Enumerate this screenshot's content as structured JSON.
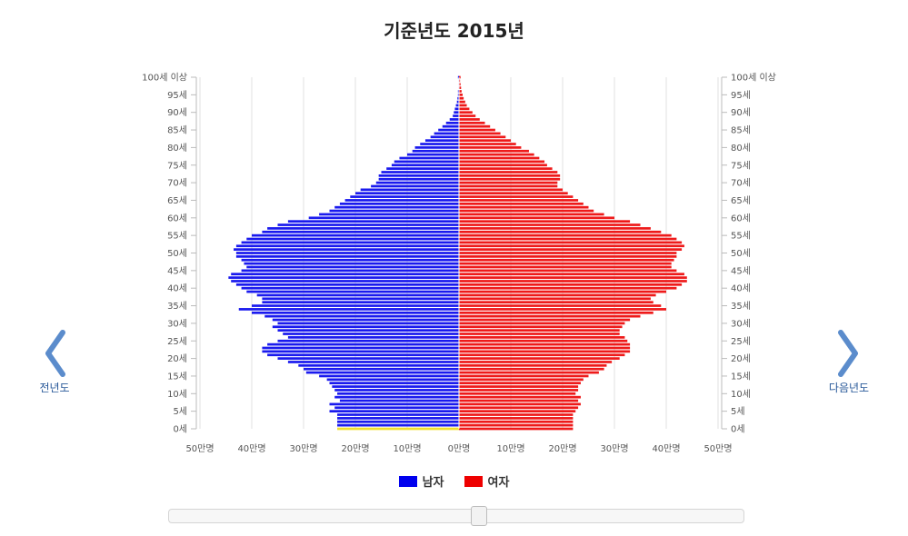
{
  "title": "기준년도 2015년",
  "nav": {
    "prev_label": "전년도",
    "next_label": "다음년도"
  },
  "legend": [
    {
      "label": "남자",
      "color": "#0000ee"
    },
    {
      "label": "여자",
      "color": "#ee0000"
    }
  ],
  "colors": {
    "male": "#1a1aee",
    "female": "#ee1a1a",
    "highlight": "#f0e030",
    "grid": "#e0e0e0"
  },
  "slider": {
    "value_fraction": 0.54
  },
  "chart_data": {
    "type": "bar",
    "orientation": "horizontal-population-pyramid",
    "title": "기준년도 2015년",
    "age_tick_labels": [
      "0세",
      "5세",
      "10세",
      "15세",
      "20세",
      "25세",
      "30세",
      "35세",
      "40세",
      "45세",
      "50세",
      "55세",
      "60세",
      "65세",
      "70세",
      "75세",
      "80세",
      "85세",
      "90세",
      "95세",
      "100세 이상"
    ],
    "x_tick_labels": [
      "50만명",
      "40만명",
      "30만명",
      "20만명",
      "10만명",
      "0만명",
      "10만명",
      "20만명",
      "30만명",
      "40만명",
      "50만명"
    ],
    "xlim": [
      -50,
      50
    ],
    "unit": "만명",
    "highlighted_age": 0,
    "series": [
      {
        "name": "남자",
        "values": [
          23.5,
          23.5,
          23.5,
          23.5,
          23.5,
          25,
          24,
          25,
          23,
          24,
          23.5,
          24,
          24.5,
          25,
          25.5,
          27,
          29.5,
          30,
          31,
          33,
          35,
          37,
          38,
          38,
          37,
          35,
          33,
          34,
          35,
          36,
          35,
          36,
          37.5,
          40,
          42.5,
          40,
          38,
          38,
          39,
          41,
          42,
          43,
          44,
          44.5,
          44,
          42,
          41,
          41.5,
          42,
          43,
          43,
          43.5,
          43,
          42,
          41,
          40,
          38,
          37,
          35,
          33,
          29,
          27,
          25,
          24,
          23,
          22,
          21,
          20,
          19,
          17,
          16,
          15.5,
          15.5,
          15,
          14,
          13,
          12.5,
          11.5,
          10,
          9,
          8.5,
          7.5,
          6.5,
          5.5,
          4.8,
          4,
          3.2,
          2.5,
          1.8,
          1.2,
          1,
          0.8,
          0.6,
          0.4,
          0.3,
          0.2,
          0.2,
          0.1,
          0.1,
          0.1,
          0.2
        ]
      },
      {
        "name": "여자",
        "values": [
          22,
          22,
          22,
          22,
          22,
          22.5,
          23,
          23.5,
          23,
          23.5,
          22.5,
          23,
          23,
          23.5,
          24,
          25,
          27,
          28,
          28.5,
          29.5,
          31,
          32,
          33,
          33,
          33,
          32.5,
          32,
          31,
          31,
          31.5,
          32,
          33,
          35,
          37.5,
          40,
          39,
          37.5,
          37,
          38,
          40,
          42,
          43,
          44,
          44,
          43.5,
          42,
          41,
          41,
          41.5,
          42,
          42,
          43,
          43.5,
          43,
          42,
          41,
          39,
          37,
          35,
          33,
          30,
          28,
          26,
          25,
          24,
          23,
          22,
          21,
          20,
          19,
          19,
          19.5,
          19.5,
          19,
          18,
          17,
          16.5,
          15.5,
          14.5,
          13.5,
          12,
          11,
          10,
          9,
          8,
          7,
          6,
          5,
          4,
          3.2,
          2.6,
          2,
          1.5,
          1.2,
          0.9,
          0.7,
          0.5,
          0.4,
          0.3,
          0.2,
          0.3
        ]
      }
    ]
  }
}
